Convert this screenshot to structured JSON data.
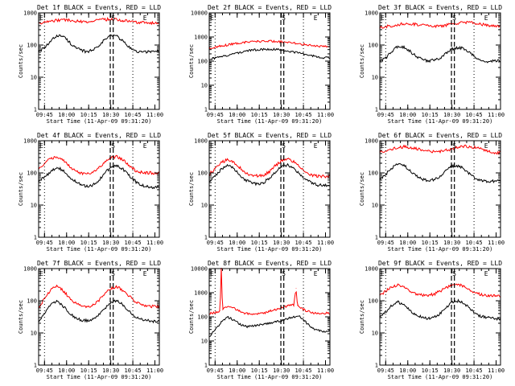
{
  "colors": {
    "events": "#000000",
    "lld": "#ff0000",
    "background": "#ffffff",
    "axes": "#000000"
  },
  "chart_data": [
    {
      "type": "line",
      "title": "Det 1f BLACK = Events, RED = LLD",
      "xlabel": "Start Time (11-Apr-09 09:31:20)",
      "ylabel": "Counts/sec",
      "yscale": "log",
      "ylim": [
        1,
        1000
      ],
      "yticks": [
        "1",
        "10",
        "100",
        "1000"
      ],
      "xticks": [
        "09:45",
        "10:00",
        "10:15",
        "10:30",
        "10:45",
        "11:00"
      ],
      "markers": [
        "E",
        "S",
        "E"
      ],
      "series": [
        {
          "color": "#000000",
          "x": [
            0,
            5,
            10,
            15,
            20,
            25,
            30,
            35,
            40,
            45,
            50,
            55,
            60,
            65,
            70,
            75,
            80,
            85,
            90,
            95
          ],
          "y": [
            65,
            80,
            130,
            200,
            190,
            130,
            85,
            68,
            62,
            70,
            100,
            150,
            200,
            190,
            130,
            85,
            65,
            60,
            62,
            65
          ]
        },
        {
          "color": "#ff0000",
          "x": [
            0,
            10,
            20,
            30,
            40,
            50,
            60,
            70,
            80,
            90,
            95
          ],
          "y": [
            480,
            560,
            620,
            560,
            520,
            600,
            640,
            580,
            520,
            490,
            480
          ]
        }
      ]
    },
    {
      "type": "line",
      "title": "Det 2f BLACK = Events, RED = LLD",
      "xlabel": "Start Time (11-Apr-09 09:31:20)",
      "ylabel": "Counts/sec",
      "yscale": "log",
      "ylim": [
        1,
        10000
      ],
      "yticks": [
        "1",
        "10",
        "100",
        "1000",
        "10000"
      ],
      "xticks": [
        "09:45",
        "10:00",
        "10:15",
        "10:30",
        "10:45",
        "11:00"
      ],
      "markers": [
        "E",
        "S",
        "E"
      ],
      "series": [
        {
          "color": "#000000",
          "x": [
            0,
            10,
            20,
            30,
            40,
            50,
            60,
            70,
            80,
            90,
            95
          ],
          "y": [
            120,
            150,
            200,
            260,
            300,
            320,
            290,
            240,
            190,
            150,
            140
          ]
        },
        {
          "color": "#ff0000",
          "x": [
            0,
            10,
            20,
            30,
            40,
            50,
            60,
            70,
            80,
            90,
            95
          ],
          "y": [
            350,
            420,
            520,
            600,
            650,
            680,
            620,
            560,
            480,
            420,
            400
          ]
        }
      ]
    },
    {
      "type": "line",
      "title": "Det 3f BLACK = Events, RED = LLD",
      "xlabel": "Start Time (11-Apr-09 09:31:20)",
      "ylabel": "Counts/sec",
      "yscale": "log",
      "ylim": [
        1,
        1000
      ],
      "yticks": [
        "1",
        "10",
        "100",
        "1000"
      ],
      "xticks": [
        "09:45",
        "10:00",
        "10:15",
        "10:30",
        "10:45",
        "11:00"
      ],
      "markers": [
        "E",
        "S",
        "E"
      ],
      "series": [
        {
          "color": "#000000",
          "x": [
            0,
            5,
            10,
            15,
            20,
            25,
            30,
            35,
            40,
            45,
            50,
            55,
            60,
            65,
            70,
            75,
            80,
            85,
            90,
            95
          ],
          "y": [
            30,
            40,
            65,
            90,
            85,
            65,
            45,
            35,
            32,
            34,
            40,
            55,
            75,
            85,
            75,
            55,
            40,
            32,
            30,
            32
          ]
        },
        {
          "color": "#ff0000",
          "x": [
            0,
            10,
            20,
            30,
            40,
            50,
            60,
            70,
            80,
            90,
            95
          ],
          "y": [
            350,
            400,
            460,
            440,
            400,
            380,
            450,
            520,
            470,
            400,
            380
          ]
        }
      ]
    },
    {
      "type": "line",
      "title": "Det 4f BLACK = Events, RED = LLD",
      "xlabel": "Start Time (11-Apr-09 09:31:20)",
      "ylabel": "Counts/sec",
      "yscale": "log",
      "ylim": [
        1,
        1000
      ],
      "yticks": [
        "1",
        "10",
        "100",
        "1000"
      ],
      "xticks": [
        "09:45",
        "10:00",
        "10:15",
        "10:30",
        "10:45",
        "11:00"
      ],
      "markers": [
        "E",
        "S",
        "E"
      ],
      "series": [
        {
          "color": "#000000",
          "x": [
            0,
            5,
            10,
            15,
            20,
            25,
            30,
            35,
            40,
            45,
            50,
            55,
            60,
            65,
            70,
            75,
            80,
            85,
            90,
            95
          ],
          "y": [
            55,
            75,
            110,
            150,
            120,
            80,
            55,
            42,
            38,
            42,
            60,
            100,
            150,
            170,
            130,
            85,
            55,
            42,
            38,
            36
          ]
        },
        {
          "color": "#ff0000",
          "x": [
            0,
            5,
            10,
            15,
            20,
            25,
            30,
            35,
            40,
            45,
            50,
            55,
            60,
            65,
            70,
            75,
            80,
            85,
            90,
            95
          ],
          "y": [
            140,
            200,
            280,
            320,
            250,
            170,
            120,
            100,
            95,
            100,
            140,
            220,
            300,
            320,
            250,
            170,
            120,
            105,
            100,
            100
          ]
        }
      ]
    },
    {
      "type": "line",
      "title": "Det 5f BLACK = Events, RED = LLD",
      "xlabel": "Start Time (11-Apr-09 09:31:20)",
      "ylabel": "Counts/sec",
      "yscale": "log",
      "ylim": [
        1,
        1000
      ],
      "yticks": [
        "1",
        "10",
        "100",
        "1000"
      ],
      "xticks": [
        "09:45",
        "10:00",
        "10:15",
        "10:30",
        "10:45",
        "11:00"
      ],
      "markers": [
        "E",
        "S",
        "E"
      ],
      "series": [
        {
          "color": "#000000",
          "x": [
            0,
            5,
            10,
            15,
            20,
            25,
            30,
            35,
            40,
            45,
            50,
            55,
            60,
            65,
            70,
            75,
            80,
            85,
            90,
            95
          ],
          "y": [
            55,
            80,
            130,
            170,
            140,
            90,
            60,
            48,
            45,
            50,
            70,
            110,
            160,
            180,
            140,
            90,
            60,
            48,
            42,
            40
          ]
        },
        {
          "color": "#ff0000",
          "x": [
            0,
            5,
            10,
            15,
            20,
            25,
            30,
            35,
            40,
            45,
            50,
            55,
            60,
            65,
            70,
            75,
            80,
            85,
            90,
            95
          ],
          "y": [
            90,
            140,
            210,
            260,
            220,
            150,
            100,
            85,
            80,
            85,
            110,
            170,
            240,
            270,
            220,
            150,
            100,
            85,
            80,
            78
          ]
        }
      ]
    },
    {
      "type": "line",
      "title": "Det 6f BLACK = Events, RED = LLD",
      "xlabel": "Start Time (11-Apr-09 09:31:20)",
      "ylabel": "Counts/sec",
      "yscale": "log",
      "ylim": [
        1,
        1000
      ],
      "yticks": [
        "1",
        "10",
        "100",
        "1000"
      ],
      "xticks": [
        "09:45",
        "10:00",
        "10:15",
        "10:30",
        "10:45",
        "11:00"
      ],
      "markers": [
        "E",
        "S",
        "E"
      ],
      "series": [
        {
          "color": "#000000",
          "x": [
            0,
            5,
            10,
            15,
            20,
            25,
            30,
            35,
            40,
            45,
            50,
            55,
            60,
            65,
            70,
            75,
            80,
            85,
            90,
            95
          ],
          "y": [
            60,
            90,
            140,
            190,
            170,
            120,
            80,
            62,
            58,
            62,
            80,
            120,
            160,
            170,
            130,
            90,
            65,
            58,
            55,
            56
          ]
        },
        {
          "color": "#ff0000",
          "x": [
            0,
            10,
            20,
            30,
            40,
            50,
            60,
            70,
            80,
            90,
            95
          ],
          "y": [
            450,
            550,
            650,
            560,
            470,
            460,
            560,
            680,
            600,
            480,
            420
          ]
        }
      ]
    },
    {
      "type": "line",
      "title": "Det 7f BLACK = Events, RED = LLD",
      "xlabel": "Start Time (11-Apr-09 09:31:20)",
      "ylabel": "Counts/sec",
      "yscale": "log",
      "ylim": [
        1,
        1000
      ],
      "yticks": [
        "1",
        "10",
        "100",
        "1000"
      ],
      "xticks": [
        "09:45",
        "10:00",
        "10:15",
        "10:30",
        "10:45",
        "11:00"
      ],
      "markers": [
        "E",
        "S",
        "E"
      ],
      "series": [
        {
          "color": "#000000",
          "x": [
            0,
            5,
            10,
            15,
            20,
            25,
            30,
            35,
            40,
            45,
            50,
            55,
            60,
            65,
            70,
            75,
            80,
            85,
            90,
            95
          ],
          "y": [
            22,
            40,
            75,
            95,
            70,
            45,
            30,
            25,
            24,
            26,
            38,
            60,
            90,
            100,
            75,
            48,
            32,
            26,
            24,
            23
          ]
        },
        {
          "color": "#ff0000",
          "x": [
            0,
            5,
            10,
            15,
            20,
            25,
            30,
            35,
            40,
            45,
            50,
            55,
            60,
            65,
            70,
            75,
            80,
            85,
            90,
            95
          ],
          "y": [
            60,
            120,
            220,
            280,
            210,
            130,
            85,
            70,
            66,
            72,
            100,
            170,
            240,
            270,
            210,
            140,
            95,
            78,
            70,
            66
          ]
        }
      ]
    },
    {
      "type": "line",
      "title": "Det 8f BLACK = Events, RED = LLD",
      "xlabel": "Start Time (11-Apr-09 09:31:20)",
      "ylabel": "Counts/sec",
      "yscale": "log",
      "ylim": [
        1,
        10000
      ],
      "yticks": [
        "1",
        "10",
        "100",
        "1000",
        "10000"
      ],
      "xticks": [
        "09:45",
        "10:00",
        "10:15",
        "10:30",
        "10:45",
        "11:00"
      ],
      "markers": [
        "E",
        "S",
        "E"
      ],
      "series": [
        {
          "color": "#000000",
          "x": [
            0,
            5,
            10,
            15,
            20,
            25,
            30,
            35,
            40,
            45,
            50,
            55,
            60,
            65,
            70,
            75,
            80,
            85,
            90,
            95
          ],
          "y": [
            15,
            30,
            60,
            100,
            75,
            50,
            40,
            40,
            45,
            50,
            55,
            60,
            70,
            85,
            100,
            110,
            60,
            35,
            28,
            25
          ]
        },
        {
          "color": "#ff0000",
          "x": [
            0,
            5,
            9,
            10,
            11,
            15,
            20,
            25,
            30,
            35,
            40,
            45,
            50,
            55,
            60,
            65,
            70,
            72,
            73,
            74,
            78,
            85,
            90,
            95
          ],
          "y": [
            140,
            150,
            180,
            10000,
            200,
            260,
            240,
            170,
            140,
            130,
            130,
            140,
            170,
            200,
            240,
            280,
            310,
            1500,
            300,
            280,
            200,
            150,
            140,
            140
          ]
        }
      ]
    },
    {
      "type": "line",
      "title": "Det 9f BLACK = Events, RED = LLD",
      "xlabel": "Start Time (11-Apr-09 09:31:20)",
      "ylabel": "Counts/sec",
      "yscale": "log",
      "ylim": [
        1,
        1000
      ],
      "yticks": [
        "1",
        "10",
        "100",
        "1000"
      ],
      "xticks": [
        "09:45",
        "10:00",
        "10:15",
        "10:30",
        "10:45",
        "11:00"
      ],
      "markers": [
        "E",
        "S",
        "E"
      ],
      "series": [
        {
          "color": "#000000",
          "x": [
            0,
            5,
            10,
            15,
            20,
            25,
            30,
            35,
            40,
            45,
            50,
            55,
            60,
            65,
            70,
            75,
            80,
            85,
            90,
            95
          ],
          "y": [
            30,
            45,
            70,
            90,
            75,
            50,
            36,
            30,
            28,
            30,
            40,
            60,
            90,
            100,
            80,
            55,
            38,
            32,
            30,
            28
          ]
        },
        {
          "color": "#ff0000",
          "x": [
            0,
            5,
            10,
            15,
            20,
            25,
            30,
            35,
            40,
            45,
            50,
            55,
            60,
            65,
            70,
            75,
            80,
            85,
            90,
            95
          ],
          "y": [
            150,
            200,
            270,
            300,
            260,
            200,
            160,
            150,
            150,
            160,
            200,
            260,
            310,
            320,
            270,
            210,
            170,
            150,
            140,
            140
          ]
        }
      ]
    }
  ]
}
